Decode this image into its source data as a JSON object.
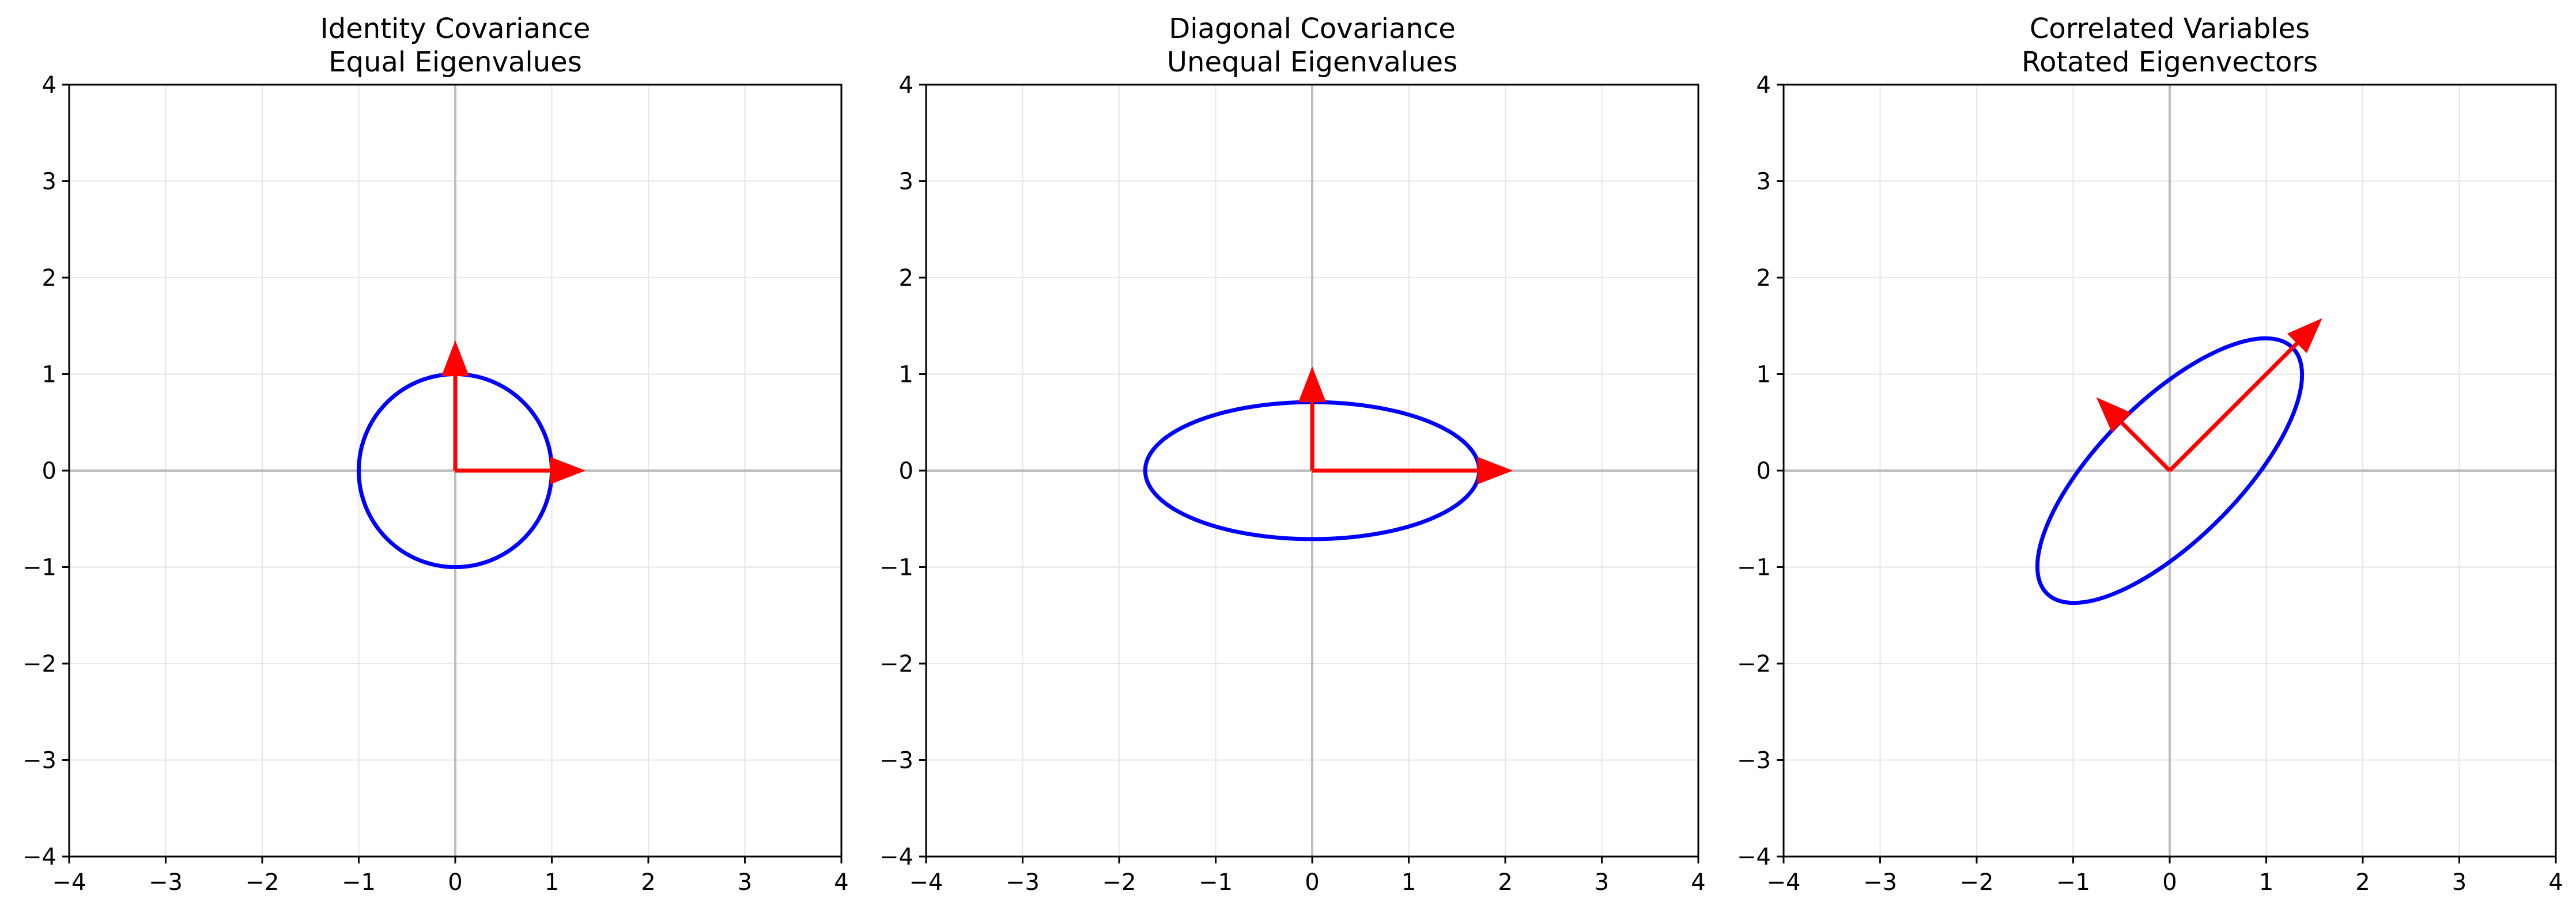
{
  "colors": {
    "ellipse": "#0000ff",
    "eigenvector": "#ff0000",
    "grid": "#e6e6e6",
    "axis_line": "#bdbdbd",
    "frame": "#000000"
  },
  "chart_data": [
    {
      "type": "line",
      "title": [
        "Identity Covariance",
        "Equal Eigenvalues"
      ],
      "xlim": [
        -4,
        4
      ],
      "ylim": [
        -4,
        4
      ],
      "xticks": [
        -4,
        -3,
        -2,
        -1,
        0,
        1,
        2,
        3,
        4
      ],
      "yticks": [
        -4,
        -3,
        -2,
        -1,
        0,
        1,
        2,
        3,
        4
      ],
      "grid": true,
      "ellipse": {
        "center": [
          0,
          0
        ],
        "semi_axes": [
          1,
          1
        ],
        "angle_deg": 0
      },
      "eigenvectors": [
        {
          "from": [
            0,
            0
          ],
          "to": [
            1.35,
            0
          ]
        },
        {
          "from": [
            0,
            0
          ],
          "to": [
            0,
            1.35
          ]
        }
      ]
    },
    {
      "type": "line",
      "title": [
        "Diagonal Covariance",
        "Unequal Eigenvalues"
      ],
      "xlim": [
        -4,
        4
      ],
      "ylim": [
        -4,
        4
      ],
      "xticks": [
        -4,
        -3,
        -2,
        -1,
        0,
        1,
        2,
        3,
        4
      ],
      "yticks": [
        -4,
        -3,
        -2,
        -1,
        0,
        1,
        2,
        3,
        4
      ],
      "grid": true,
      "ellipse": {
        "center": [
          0,
          0
        ],
        "semi_axes": [
          1.73,
          0.71
        ],
        "angle_deg": 0
      },
      "eigenvectors": [
        {
          "from": [
            0,
            0
          ],
          "to": [
            2.08,
            0
          ]
        },
        {
          "from": [
            0,
            0
          ],
          "to": [
            0,
            1.08
          ]
        }
      ]
    },
    {
      "type": "line",
      "title": [
        "Correlated Variables",
        "Rotated Eigenvectors"
      ],
      "xlim": [
        -4,
        4
      ],
      "ylim": [
        -4,
        4
      ],
      "xticks": [
        -4,
        -3,
        -2,
        -1,
        0,
        1,
        2,
        3,
        4
      ],
      "yticks": [
        -4,
        -3,
        -2,
        -1,
        0,
        1,
        2,
        3,
        4
      ],
      "grid": true,
      "ellipse": {
        "center": [
          0,
          0
        ],
        "semi_axes": [
          1.8,
          0.72
        ],
        "angle_deg": 45
      },
      "eigenvectors": [
        {
          "from": [
            0,
            0
          ],
          "to": [
            1.58,
            1.58
          ]
        },
        {
          "from": [
            0,
            0
          ],
          "to": [
            -0.76,
            0.76
          ]
        }
      ]
    }
  ]
}
